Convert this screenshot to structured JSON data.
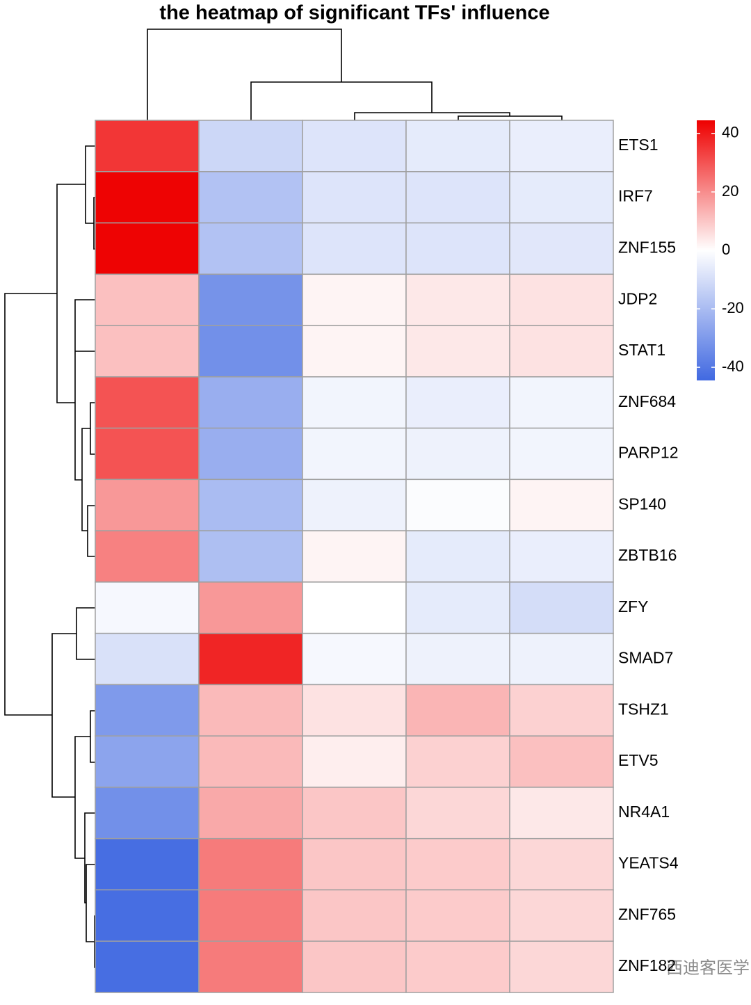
{
  "chart_data": {
    "type": "heatmap",
    "title": "the heatmap of significant TFs' influence",
    "rows": [
      "ETS1",
      "IRF7",
      "ZNF155",
      "JDP2",
      "STAT1",
      "ZNF684",
      "PARP12",
      "SP140",
      "ZBTB16",
      "ZFY",
      "SMAD7",
      "TSHZ1",
      "ETV5",
      "NR4A1",
      "YEATS4",
      "ZNF765",
      "ZNF182"
    ],
    "values": [
      [
        35,
        -12,
        -8,
        -6,
        -5
      ],
      [
        44,
        -18,
        -8,
        -8,
        -6
      ],
      [
        44,
        -18,
        -8,
        -8,
        -7
      ],
      [
        11,
        -32,
        2,
        4,
        5
      ],
      [
        11,
        -33,
        2,
        4,
        5
      ],
      [
        30,
        -24,
        -3,
        -5,
        -3
      ],
      [
        30,
        -24,
        -3,
        -4,
        -3
      ],
      [
        18,
        -20,
        -4,
        -1,
        2
      ],
      [
        22,
        -19,
        2,
        -6,
        -5
      ],
      [
        -2,
        18,
        0,
        -6,
        -10
      ],
      [
        -9,
        38,
        -2,
        -4,
        -4
      ],
      [
        -30,
        12,
        5,
        13,
        8
      ],
      [
        -27,
        12,
        3,
        8,
        11
      ],
      [
        -33,
        15,
        10,
        7,
        4
      ],
      [
        -43,
        23,
        10,
        9,
        7
      ],
      [
        -43,
        23,
        10,
        9,
        7
      ],
      [
        -43,
        23,
        10,
        9,
        7
      ]
    ],
    "colors": {
      "low": "#4169e1",
      "mid": "#ffffff",
      "high": "#ee0000"
    },
    "clim": [
      -44.5,
      44.5
    ],
    "cticks": [
      40,
      20,
      0,
      -20,
      -40
    ],
    "watermark": "西迪客医学"
  }
}
